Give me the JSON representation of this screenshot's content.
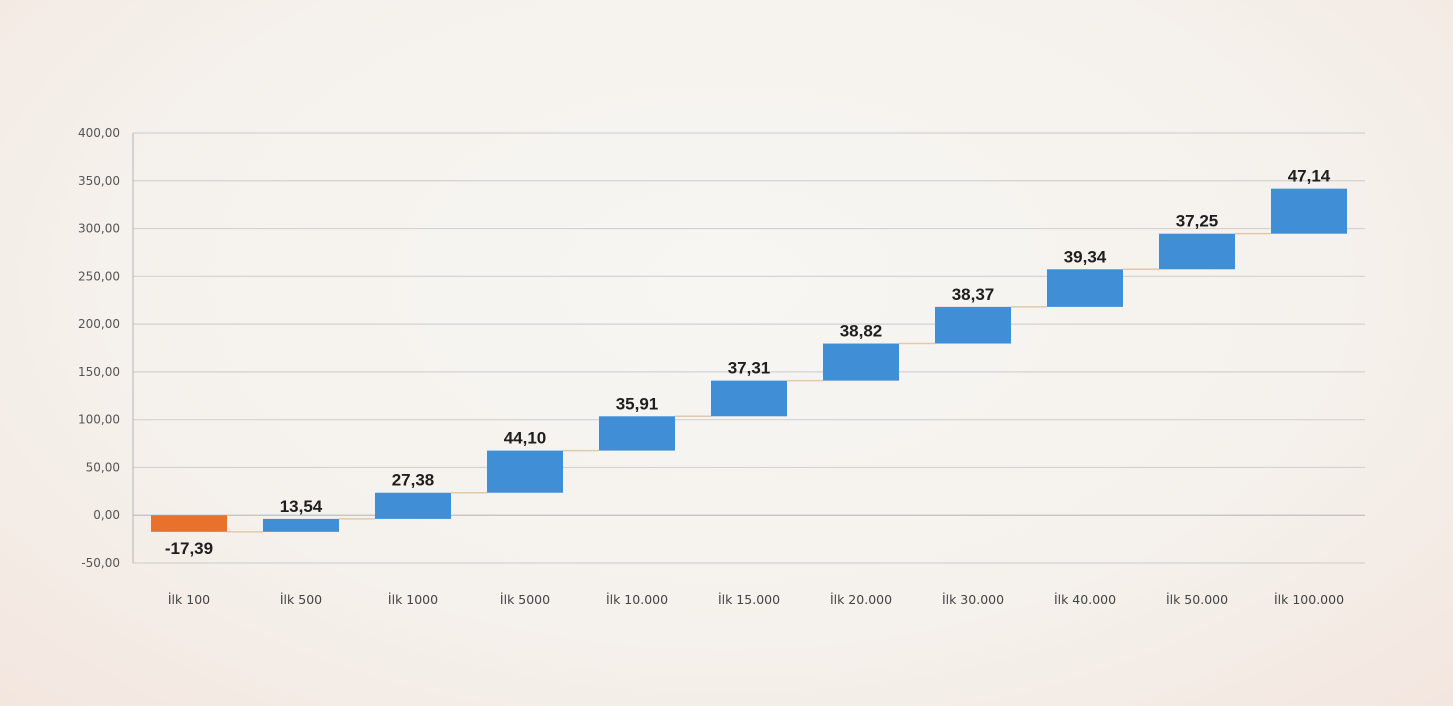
{
  "chart_data": {
    "type": "waterfall",
    "categories": [
      "İlk 100",
      "İlk 500",
      "İlk 1000",
      "İlk 5000",
      "İlk 10.000",
      "İlk 15.000",
      "İlk 20.000",
      "İlk 30.000",
      "İlk 40.000",
      "İlk 50.000",
      "İlk 100.000"
    ],
    "values": [
      -17.39,
      13.54,
      27.38,
      44.1,
      35.91,
      37.31,
      38.82,
      38.37,
      39.34,
      37.25,
      47.14
    ],
    "value_labels": [
      "-17,39",
      "13,54",
      "27,38",
      "44,10",
      "35,91",
      "37,31",
      "38,82",
      "38,37",
      "39,34",
      "37,25",
      "47,14"
    ],
    "ylim": [
      -50,
      400
    ],
    "y_ticks": [
      -50,
      0,
      50,
      100,
      150,
      200,
      250,
      300,
      350,
      400
    ],
    "y_tick_labels": [
      "-50,00",
      "0,00",
      "50,00",
      "100,00",
      "150,00",
      "200,00",
      "250,00",
      "300,00",
      "350,00",
      "400,00"
    ],
    "grid": true,
    "legend": "none",
    "colors": {
      "increase": "#3f8ed6",
      "decrease": "#e8722c",
      "connector": "#e3c9a8"
    }
  }
}
